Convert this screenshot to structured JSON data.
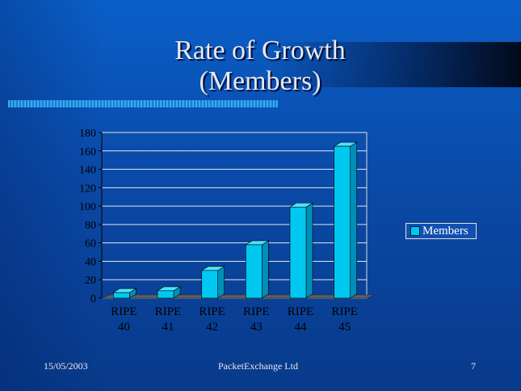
{
  "slide": {
    "title_line1": "Rate of Growth",
    "title_line2": "(Members)",
    "footer_date": "15/05/2003",
    "footer_company": "PacketExchange Ltd",
    "page_number": "7"
  },
  "chart_data": {
    "type": "bar",
    "categories": [
      [
        "RIPE",
        "40"
      ],
      [
        "RIPE",
        "41"
      ],
      [
        "RIPE",
        "42"
      ],
      [
        "RIPE",
        "43"
      ],
      [
        "RIPE",
        "44"
      ],
      [
        "RIPE",
        "45"
      ]
    ],
    "series": [
      {
        "name": "Members",
        "values": [
          6,
          8,
          30,
          58,
          99,
          165
        ],
        "color": "#00c8f0"
      }
    ],
    "ylim": [
      0,
      180
    ],
    "yticks": [
      0,
      20,
      40,
      60,
      80,
      100,
      120,
      140,
      160,
      180
    ],
    "grid": true,
    "legend_position": "right",
    "style": "3d-column"
  }
}
